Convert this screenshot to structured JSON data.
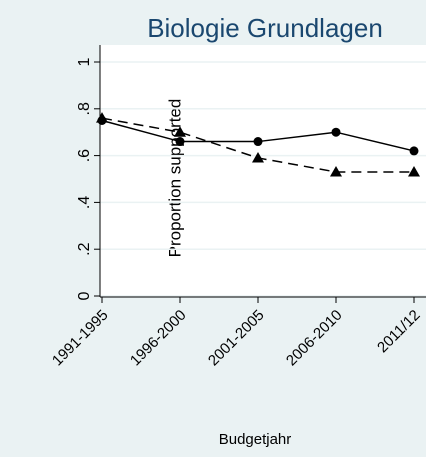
{
  "chart_data": {
    "type": "line",
    "title": "Biologie Grundlagen",
    "ylabel": "Proportion supported",
    "xlabel": "Budgetjahr",
    "categories": [
      "1991-1995",
      "1996-2000",
      "2001-2005",
      "2006-2010",
      "2011/12"
    ],
    "series": [
      {
        "color": "#000000",
        "marker": "circle",
        "dash": "solid",
        "values": [
          0.75,
          0.66,
          0.66,
          0.7,
          0.62
        ]
      },
      {
        "color": "#000000",
        "marker": "triangle",
        "dash": "dashed",
        "values": [
          0.76,
          0.7,
          0.59,
          0.53,
          0.53
        ]
      }
    ],
    "ylim": [
      0,
      1
    ],
    "yticks": [
      0,
      {
        "value": 0.2,
        "label": ".2"
      },
      {
        "value": 0.4,
        "label": ".4"
      },
      {
        "value": 0.6,
        "label": ".6"
      },
      {
        "value": 0.8,
        "label": ".8"
      },
      1
    ],
    "grid": true
  }
}
